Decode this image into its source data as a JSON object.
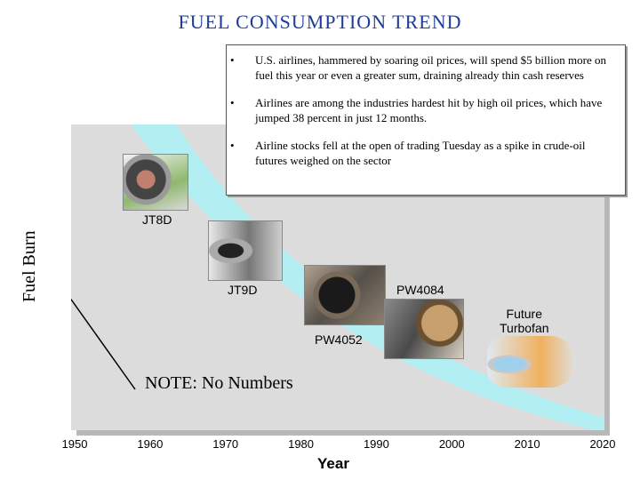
{
  "title": "FUEL CONSUMPTION TREND",
  "callout": {
    "bullets": [
      "U.S. airlines, hammered by soaring oil prices, will spend $5 billion more on fuel this year or even a greater sum, draining already thin cash reserves",
      "Airlines are among the industries hardest hit by high oil prices, which have jumped 38 percent in just 12 months.",
      "Airline stocks fell at the open of trading Tuesday as a spike in crude-oil futures weighed on the sector"
    ],
    "bullet_glyph": "•"
  },
  "note": "NOTE: No Numbers",
  "colors": {
    "trend_band": "#b3eef3",
    "plot_bg": "#dcdcdc",
    "title": "#1f3c9b"
  },
  "chart_data": {
    "type": "scatter",
    "xlabel": "Year",
    "ylabel": "Fuel Burn",
    "xlim": [
      1950,
      2020
    ],
    "x_ticks": [
      "1950",
      "1960",
      "1970",
      "1980",
      "1990",
      "2000",
      "2010",
      "2020"
    ],
    "y_values_shown": false,
    "grid": false,
    "trend": "decreasing fuel burn over time",
    "engines": [
      {
        "name": "JT8D",
        "image": "jet-engine-photo"
      },
      {
        "name": "JT9D",
        "image": "jet-engine-photo"
      },
      {
        "name": "PW4084",
        "image": "jet-engine-photo"
      },
      {
        "name": "PW4052",
        "image": "jet-engine-photo"
      },
      {
        "name": "Future Turbofan",
        "label_lines": [
          "Future",
          "Turbofan"
        ],
        "image": "turbofan-cutaway-illustration"
      }
    ]
  }
}
